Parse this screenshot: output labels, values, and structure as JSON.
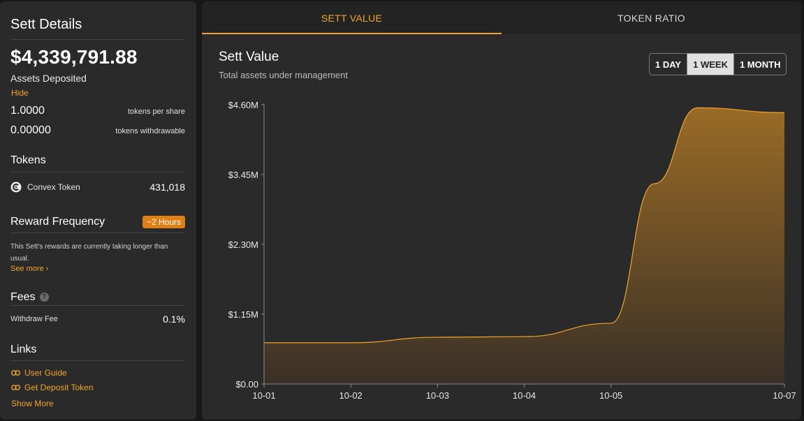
{
  "sidebar": {
    "title": "Sett Details",
    "assets_value": "$4,339,791.88",
    "assets_label": "Assets Deposited",
    "hide_label": "Hide",
    "tokens_per_share_value": "1.0000",
    "tokens_per_share_label": "tokens per share",
    "tokens_withdrawable_value": "0.00000",
    "tokens_withdrawable_label": "tokens withdrawable",
    "tokens_title": "Tokens",
    "tokens": [
      {
        "name": "Convex Token",
        "amount": "431,018",
        "icon": "convex-token-icon"
      }
    ],
    "reward_title": "Reward Frequency",
    "reward_badge": "~2 Hours",
    "reward_text": "This Sett's rewards are currently taking longer than usual.",
    "see_more": "See more ›",
    "fees_title": "Fees",
    "fees": [
      {
        "name": "Withdraw Fee",
        "value": "0.1%"
      }
    ],
    "links_title": "Links",
    "links": [
      {
        "label": "User Guide",
        "icon": "link-icon"
      },
      {
        "label": "Get Deposit Token",
        "icon": "link-icon"
      }
    ],
    "show_more": "Show More"
  },
  "tabs": [
    {
      "label": "SETT VALUE",
      "active": true
    },
    {
      "label": "TOKEN RATIO",
      "active": false
    }
  ],
  "chart_header": {
    "title": "Sett Value",
    "subtitle": "Total assets under management"
  },
  "range_buttons": [
    {
      "label": "1 DAY",
      "selected": false
    },
    {
      "label": "1 WEEK",
      "selected": true
    },
    {
      "label": "1 MONTH",
      "selected": false
    }
  ],
  "colors": {
    "accent": "#f2a52b",
    "badge": "#e07f16",
    "panel": "#2a2a2a",
    "background": "#181818"
  },
  "chart_data": {
    "type": "area",
    "title": "Sett Value",
    "subtitle": "Total assets under management",
    "x": [
      "10-01",
      "10-02",
      "10-03",
      "10-04",
      "10-05",
      "10-05.5",
      "10-06",
      "10-07"
    ],
    "x_ticks": [
      "10-01",
      "10-02",
      "10-03",
      "10-04",
      "10-05",
      "10-07"
    ],
    "series": [
      {
        "values_m": [
          0.68,
          0.68,
          0.77,
          0.78,
          1.0,
          3.3,
          4.55,
          4.47
        ]
      }
    ],
    "points": [
      {
        "x": 0.0,
        "y": 0.68
      },
      {
        "x": 1.0,
        "y": 0.68
      },
      {
        "x": 2.0,
        "y": 0.77
      },
      {
        "x": 3.0,
        "y": 0.78
      },
      {
        "x": 4.0,
        "y": 1.0
      },
      {
        "x": 4.5,
        "y": 3.3
      },
      {
        "x": 5.0,
        "y": 4.55
      },
      {
        "x": 6.0,
        "y": 4.47
      }
    ],
    "x_tick_positions": [
      0,
      1,
      2,
      3,
      4,
      6
    ],
    "y_ticks": [
      "$0.00",
      "$1.15M",
      "$2.30M",
      "$3.45M",
      "$4.60M"
    ],
    "y_tick_values": [
      0,
      1.15,
      2.3,
      3.45,
      4.6
    ],
    "ylim": [
      0,
      4.6
    ],
    "grid": false,
    "line_color": "#f2a52b"
  }
}
